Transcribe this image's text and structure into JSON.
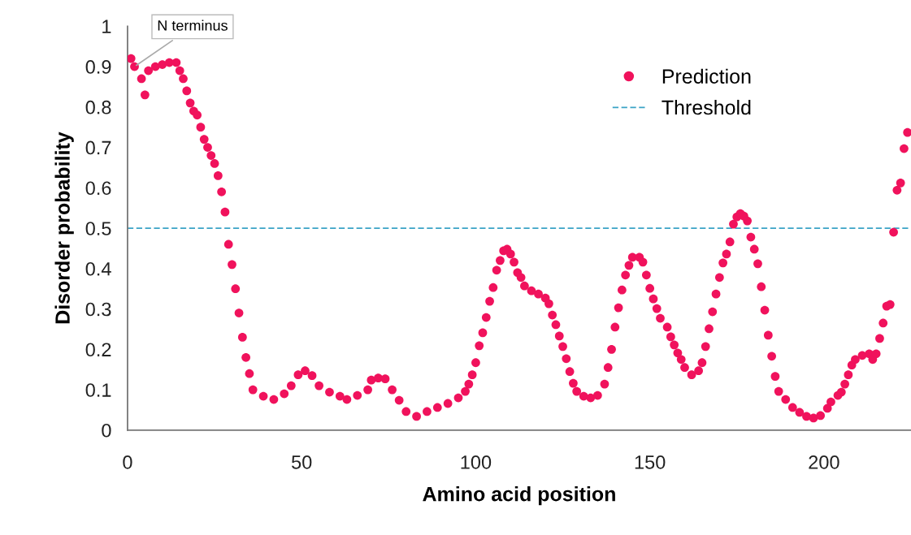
{
  "chart_data": {
    "type": "scatter",
    "xlabel": "Amino acid position",
    "ylabel": "Disorder probability",
    "x": [
      1,
      2,
      4,
      5,
      6,
      8,
      10,
      12,
      14,
      15,
      16,
      17,
      18,
      19,
      20,
      21,
      22,
      23,
      24,
      25,
      26,
      27,
      28,
      29,
      30,
      31,
      32,
      33,
      34,
      35,
      36,
      39,
      42,
      45,
      47,
      49,
      51,
      53,
      55,
      58,
      61,
      63,
      66,
      69,
      70,
      72,
      74,
      76,
      78,
      80,
      83,
      86,
      89,
      92,
      95,
      97,
      98,
      99,
      100,
      101,
      102,
      103,
      104,
      105,
      106,
      107,
      108,
      109,
      110,
      111,
      112,
      113,
      114,
      116,
      118,
      120,
      121,
      122,
      123,
      124,
      125,
      126,
      127,
      128,
      129,
      131,
      133,
      135,
      137,
      138,
      139,
      140,
      141,
      142,
      143,
      144,
      145,
      147,
      148,
      149,
      150,
      151,
      152,
      153,
      155,
      156,
      157,
      158,
      159,
      160,
      162,
      164,
      165,
      166,
      167,
      168,
      169,
      170,
      171,
      172,
      173,
      174,
      175,
      176,
      177,
      178,
      179,
      180,
      181,
      182,
      183,
      184,
      185,
      186,
      187,
      189,
      191,
      193,
      195,
      197,
      199,
      201,
      202,
      204,
      205,
      206,
      207,
      208,
      209,
      211,
      213,
      214,
      215,
      216,
      217,
      218,
      219,
      220,
      221,
      222,
      223,
      224
    ],
    "series": [
      {
        "name": "Prediction",
        "color": "#f0125c",
        "values": [
          0.92,
          0.9,
          0.87,
          0.83,
          0.89,
          0.9,
          0.905,
          0.91,
          0.91,
          0.89,
          0.87,
          0.84,
          0.81,
          0.79,
          0.78,
          0.75,
          0.72,
          0.7,
          0.68,
          0.66,
          0.63,
          0.59,
          0.54,
          0.46,
          0.41,
          0.35,
          0.29,
          0.23,
          0.18,
          0.14,
          0.1,
          0.084,
          0.076,
          0.09,
          0.11,
          0.137,
          0.147,
          0.135,
          0.11,
          0.094,
          0.084,
          0.076,
          0.086,
          0.1,
          0.124,
          0.129,
          0.127,
          0.1,
          0.074,
          0.046,
          0.034,
          0.046,
          0.056,
          0.066,
          0.08,
          0.096,
          0.114,
          0.137,
          0.167,
          0.209,
          0.241,
          0.279,
          0.319,
          0.353,
          0.396,
          0.42,
          0.444,
          0.448,
          0.436,
          0.416,
          0.39,
          0.378,
          0.357,
          0.345,
          0.337,
          0.327,
          0.313,
          0.285,
          0.261,
          0.233,
          0.207,
          0.177,
          0.145,
          0.116,
          0.096,
          0.084,
          0.08,
          0.086,
          0.114,
          0.155,
          0.2,
          0.255,
          0.303,
          0.347,
          0.384,
          0.408,
          0.428,
          0.428,
          0.416,
          0.384,
          0.351,
          0.325,
          0.301,
          0.277,
          0.255,
          0.231,
          0.211,
          0.191,
          0.175,
          0.155,
          0.137,
          0.147,
          0.167,
          0.207,
          0.251,
          0.293,
          0.337,
          0.378,
          0.414,
          0.436,
          0.466,
          0.51,
          0.528,
          0.536,
          0.53,
          0.518,
          0.478,
          0.448,
          0.412,
          0.355,
          0.297,
          0.235,
          0.183,
          0.133,
          0.096,
          0.076,
          0.056,
          0.044,
          0.034,
          0.03,
          0.036,
          0.054,
          0.07,
          0.086,
          0.094,
          0.114,
          0.137,
          0.161,
          0.175,
          0.185,
          0.189,
          0.175,
          0.189,
          0.227,
          0.265,
          0.307,
          0.311,
          0.49,
          0.594,
          0.612,
          0.697,
          0.737
        ]
      }
    ],
    "xlim": [
      0,
      225
    ],
    "xticks": [
      0,
      50,
      100,
      150,
      200
    ],
    "ylim": [
      0,
      1
    ],
    "yticks": [
      0,
      0.1,
      0.2,
      0.3,
      0.4,
      0.5,
      0.6,
      0.7,
      0.8,
      0.9,
      1
    ],
    "ref_lines": [
      {
        "axis": "y",
        "value": 0.5,
        "label": "Threshold",
        "color": "#3aa3c6",
        "line_style": "dashed"
      }
    ],
    "annotations": [
      {
        "text": "N terminus",
        "x": 2,
        "y": 0.9
      }
    ],
    "marker": "circle",
    "legend": "top right",
    "grid": false
  }
}
